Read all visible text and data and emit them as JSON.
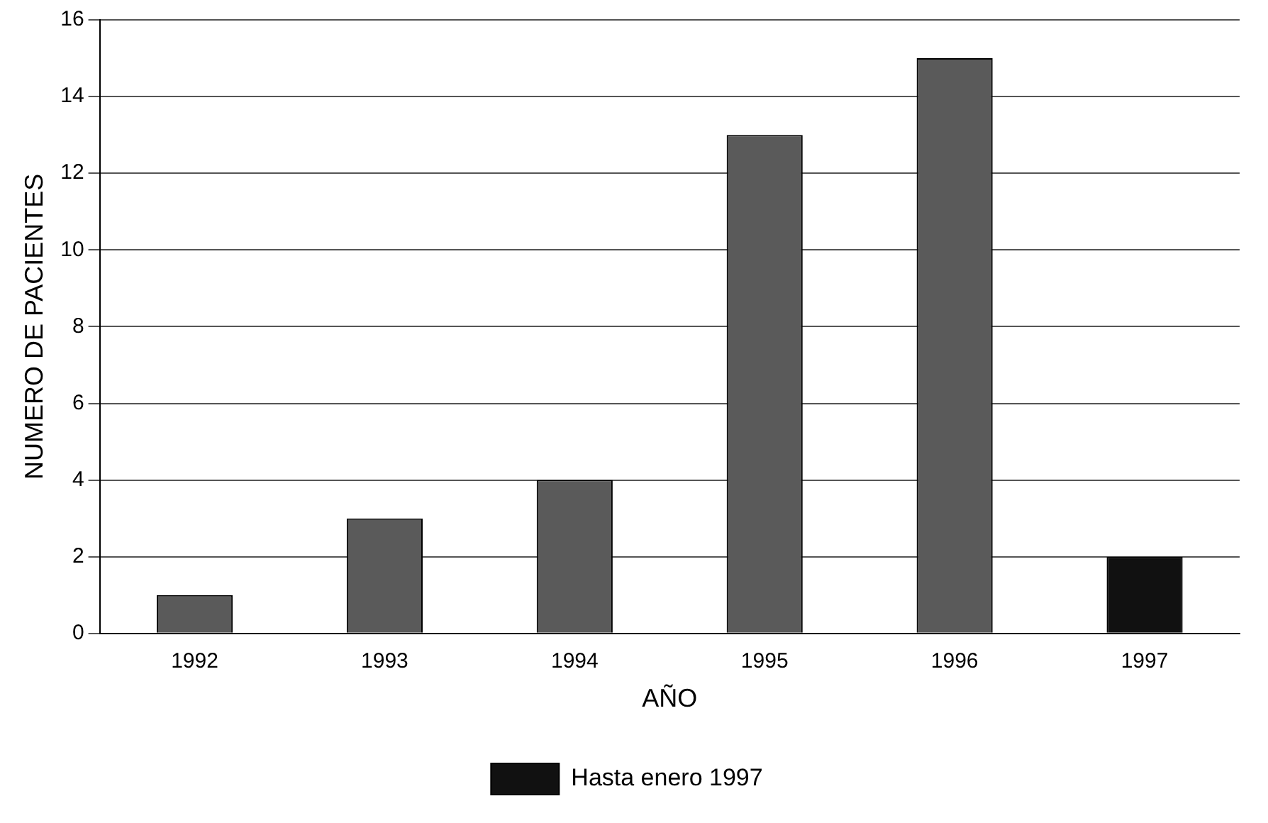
{
  "chart_data": {
    "type": "bar",
    "xlabel": "AÑO",
    "ylabel": "NUMERO DE PACIENTES",
    "categories": [
      "1992",
      "1993",
      "1994",
      "1995",
      "1996",
      "1997"
    ],
    "series": [
      {
        "color": "#5a5a5a",
        "values": [
          1,
          3,
          4,
          13,
          15,
          null
        ]
      },
      {
        "name": "Hasta enero 1997",
        "color": "#111111",
        "values": [
          null,
          null,
          null,
          null,
          null,
          2
        ]
      }
    ],
    "stacked": true,
    "ylim": [
      0,
      16
    ],
    "yticks": [
      0,
      2,
      4,
      6,
      8,
      10,
      12,
      14,
      16
    ],
    "grid": "y",
    "legend": "bottom"
  }
}
